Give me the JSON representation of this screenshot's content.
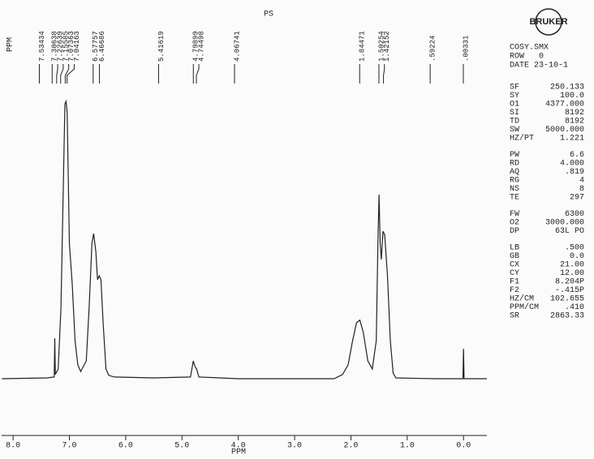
{
  "chart_data": {
    "type": "line",
    "title": "PS",
    "xlabel": "PPM",
    "xlim": [
      8.204,
      -0.415
    ],
    "ylim": [
      0,
      100
    ],
    "color": "#222222",
    "xticks": [
      {
        "value": 8,
        "label": "8.0"
      },
      {
        "value": 7,
        "label": "7.0"
      },
      {
        "value": 6,
        "label": "6.0"
      },
      {
        "value": 5,
        "label": "5.0"
      },
      {
        "value": 4,
        "label": "4.0"
      },
      {
        "value": 3,
        "label": "3.0"
      },
      {
        "value": 2,
        "label": "2.0"
      },
      {
        "value": 1,
        "label": "1.0"
      },
      {
        "value": 0,
        "label": "0.0"
      }
    ],
    "x": [
      8.2,
      7.4,
      7.27,
      7.26,
      7.25,
      7.2,
      7.15,
      7.1,
      7.08,
      7.06,
      7.04,
      7.0,
      6.95,
      6.9,
      6.85,
      6.8,
      6.7,
      6.65,
      6.6,
      6.57,
      6.53,
      6.5,
      6.47,
      6.44,
      6.4,
      6.35,
      6.3,
      6.2,
      5.5,
      4.85,
      4.8,
      4.77,
      4.74,
      4.7,
      4.0,
      2.3,
      2.15,
      2.05,
      1.97,
      1.9,
      1.84,
      1.78,
      1.7,
      1.62,
      1.55,
      1.52,
      1.5,
      1.48,
      1.46,
      1.43,
      1.4,
      1.35,
      1.3,
      1.25,
      1.2,
      0.5,
      0.01,
      0.0,
      -0.01,
      -0.415
    ],
    "values": [
      0,
      0.3,
      0.6,
      14.6,
      1.5,
      3.5,
      25.4,
      78.1,
      99.1,
      100,
      95.6,
      48.8,
      34.2,
      13.7,
      5.0,
      2.6,
      6.4,
      25.4,
      48.8,
      52.3,
      45.9,
      35.7,
      37.1,
      35.7,
      19.6,
      3.5,
      1.2,
      0.6,
      0.3,
      0.6,
      6.4,
      4.4,
      3.5,
      0.6,
      0,
      0,
      1.5,
      5.0,
      13.7,
      20.2,
      21.1,
      16.7,
      6.4,
      3.5,
      13.7,
      48.8,
      66.4,
      48.8,
      43.0,
      53.2,
      51.8,
      37.1,
      13.7,
      2.0,
      0.3,
      0,
      0,
      10.8,
      0,
      0
    ],
    "annotation_unit": "PPM",
    "peak_labels": [
      7.53434,
      7.30638,
      7.22639,
      7.15585,
      7.07363,
      7.04163,
      6.57757,
      6.46686,
      5.41619,
      4.79899,
      4.74498,
      4.06741,
      1.84471,
      1.50254,
      1.42152,
      {
        "value": 0.59224,
        "label": ".59224"
      },
      {
        "value": 0.00331,
        "label": ".00331"
      }
    ]
  },
  "logo": "BRUKER",
  "header": [
    "COSY.SMX",
    "ROW   0",
    "DATE 23-10-1"
  ],
  "parameters": [
    [
      [
        "SF",
        "250.133"
      ],
      [
        "SY",
        "100.0"
      ],
      [
        "O1",
        "4377.000"
      ],
      [
        "SI",
        "8192"
      ],
      [
        "TD",
        "8192"
      ],
      [
        "SW",
        "5000.000"
      ],
      [
        "HZ/PT",
        "1.221"
      ]
    ],
    [
      [
        "PW",
        "6.6"
      ],
      [
        "RD",
        "4.000"
      ],
      [
        "AQ",
        ".819"
      ],
      [
        "RG",
        "4"
      ],
      [
        "NS",
        "8"
      ],
      [
        "TE",
        "297"
      ]
    ],
    [
      [
        "FW",
        "6300"
      ],
      [
        "O2",
        "3000.000"
      ],
      [
        "DP",
        "63L PO"
      ]
    ],
    [
      [
        "LB",
        ".500"
      ],
      [
        "GB",
        "0.0"
      ],
      [
        "CX",
        "21.00"
      ],
      [
        "CY",
        "12.00"
      ],
      [
        "F1",
        "8.204P"
      ],
      [
        "F2",
        "-.415P"
      ],
      [
        "HZ/CM",
        "102.655"
      ],
      [
        "PPM/CM",
        ".410"
      ],
      [
        "SR",
        "2863.33"
      ]
    ]
  ]
}
